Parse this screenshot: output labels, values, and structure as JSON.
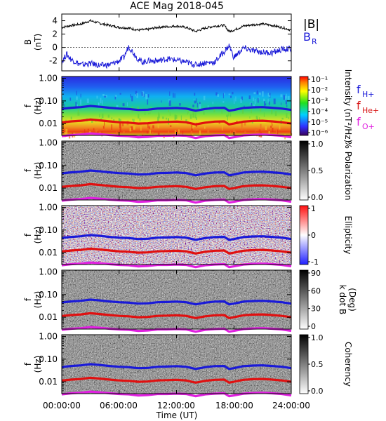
{
  "title": "ACE Mag 2018-045",
  "chart_data": [
    {
      "type": "line",
      "panel": "magnetic-field",
      "ylabel_main": "B",
      "ylabel_unit": "(nT)",
      "yticks": [
        "4",
        "2",
        "0",
        "-2"
      ],
      "ylim": [
        -3.5,
        5
      ],
      "legend": [
        {
          "label": "|B|",
          "color": "#000000"
        },
        {
          "label": "B",
          "sub": "R",
          "color": "#1a1ad8"
        }
      ],
      "series": [
        {
          "name": "|B|",
          "color": "#000000",
          "x": [
            0,
            1,
            2,
            3,
            4,
            5,
            6,
            7,
            8,
            9,
            10,
            11,
            12,
            13,
            14,
            15,
            16,
            17,
            17.5,
            18,
            19,
            20,
            21,
            22,
            23,
            24
          ],
          "y": [
            3.0,
            3.3,
            3.5,
            4.0,
            3.6,
            3.3,
            3.0,
            2.9,
            2.6,
            2.7,
            3.0,
            3.1,
            3.2,
            3.0,
            2.4,
            2.9,
            3.2,
            3.3,
            2.4,
            2.6,
            3.2,
            3.4,
            3.5,
            3.3,
            3.0,
            2.6
          ]
        },
        {
          "name": "B_R",
          "color": "#1a1ad8",
          "x": [
            0,
            0.5,
            1,
            2,
            3,
            4,
            5,
            6,
            6.5,
            7,
            7.5,
            8,
            8.5,
            9,
            10,
            11,
            12,
            13,
            14,
            15,
            16,
            17,
            17.5,
            18,
            19,
            20,
            21,
            22,
            23,
            24
          ],
          "y": [
            -2.2,
            -1.0,
            -1.8,
            -2.6,
            -2.4,
            -2.7,
            -2.6,
            -2.0,
            -1.5,
            0.2,
            -0.8,
            -1.8,
            -2.2,
            -2.0,
            -2.0,
            -1.7,
            -1.9,
            -2.2,
            -2.6,
            -2.3,
            -2.2,
            -0.6,
            0.3,
            -1.5,
            -0.1,
            -0.5,
            -0.7,
            -0.8,
            -0.3,
            -0.2
          ]
        }
      ]
    },
    {
      "type": "heatmap",
      "panel": "intensity",
      "ylabel_main": "f",
      "ylabel_unit": "(Hz)",
      "yticks": [
        "1.00",
        "0.10",
        "0.01"
      ],
      "colorbar_label": "Intensity (nT²/Hz)",
      "colorbar_ticks": [
        "10⁻¹",
        "10⁻²",
        "10⁻³",
        "10⁻⁴",
        "10⁻⁵",
        "10⁻⁶"
      ],
      "colormap": "rainbow",
      "legend": [
        {
          "label": "f",
          "sub": "H+",
          "color": "#1a1ad8"
        },
        {
          "label": "f",
          "sub": "He+",
          "color": "#d81a1a"
        },
        {
          "label": "f",
          "sub": "O+",
          "color": "#e020e0"
        }
      ]
    },
    {
      "type": "heatmap",
      "panel": "polarization",
      "ylabel_main": "f",
      "ylabel_unit": "(Hz)",
      "yticks": [
        "1.00",
        "0.10",
        "0.01"
      ],
      "colorbar_label": "% Polarization",
      "colorbar_ticks": [
        "1.0",
        "0.5",
        "0.0"
      ],
      "colormap": "gray"
    },
    {
      "type": "heatmap",
      "panel": "ellipticity",
      "ylabel_main": "f",
      "ylabel_unit": "(Hz)",
      "yticks": [
        "1.00",
        "0.10",
        "0.01"
      ],
      "colorbar_label": "Ellipticity",
      "colorbar_ticks": [
        "1",
        "0",
        "-1"
      ],
      "colormap": "bwr"
    },
    {
      "type": "heatmap",
      "panel": "k-dot-b",
      "ylabel_main": "f",
      "ylabel_unit": "(Hz)",
      "yticks": [
        "1.00",
        "0.10",
        "0.01"
      ],
      "colorbar_label": "k dot B",
      "colorbar_unit": "(Deg)",
      "colorbar_ticks": [
        "90",
        "60",
        "30",
        "0"
      ],
      "colormap": "gray"
    },
    {
      "type": "heatmap",
      "panel": "coherency",
      "ylabel_main": "f",
      "ylabel_unit": "(Hz)",
      "yticks": [
        "1.00",
        "0.10",
        "0.01"
      ],
      "colorbar_label": "Coherency",
      "colorbar_ticks": [
        "1.0",
        "0.5",
        "0.0"
      ],
      "colormap": "gray"
    }
  ],
  "gyrofrequency_lines": {
    "x_hours": [
      0,
      1,
      2,
      3,
      4,
      5,
      6,
      7,
      8,
      9,
      10,
      11,
      12,
      13,
      14,
      15,
      16,
      17,
      17.5,
      18,
      19,
      20,
      21,
      22,
      23,
      24
    ],
    "f_H": [
      0.045,
      0.05,
      0.053,
      0.06,
      0.055,
      0.05,
      0.046,
      0.044,
      0.04,
      0.041,
      0.046,
      0.047,
      0.049,
      0.046,
      0.037,
      0.044,
      0.049,
      0.05,
      0.037,
      0.04,
      0.049,
      0.052,
      0.053,
      0.05,
      0.046,
      0.04
    ],
    "f_He": [
      0.0113,
      0.0125,
      0.0133,
      0.015,
      0.0138,
      0.0125,
      0.0115,
      0.011,
      0.01,
      0.0103,
      0.0115,
      0.0118,
      0.0122,
      0.0115,
      0.0092,
      0.011,
      0.0122,
      0.0125,
      0.0092,
      0.01,
      0.0122,
      0.013,
      0.0133,
      0.0125,
      0.0115,
      0.01
    ],
    "f_O": [
      0.0028,
      0.0031,
      0.0033,
      0.0037,
      0.0034,
      0.0031,
      0.0029,
      0.0028,
      0.0025,
      0.0026,
      0.0029,
      0.0029,
      0.003,
      0.0029,
      0.0023,
      0.0028,
      0.003,
      0.0031,
      0.0023,
      0.0025,
      0.003,
      0.0032,
      0.0033,
      0.0031,
      0.0029,
      0.0025
    ]
  },
  "x_axis": {
    "label": "Time (UT)",
    "ticks": [
      "00:00:00",
      "06:00:00",
      "12:00:00",
      "18:00:00",
      "24:00:00"
    ],
    "range_hours": [
      0,
      24
    ]
  }
}
